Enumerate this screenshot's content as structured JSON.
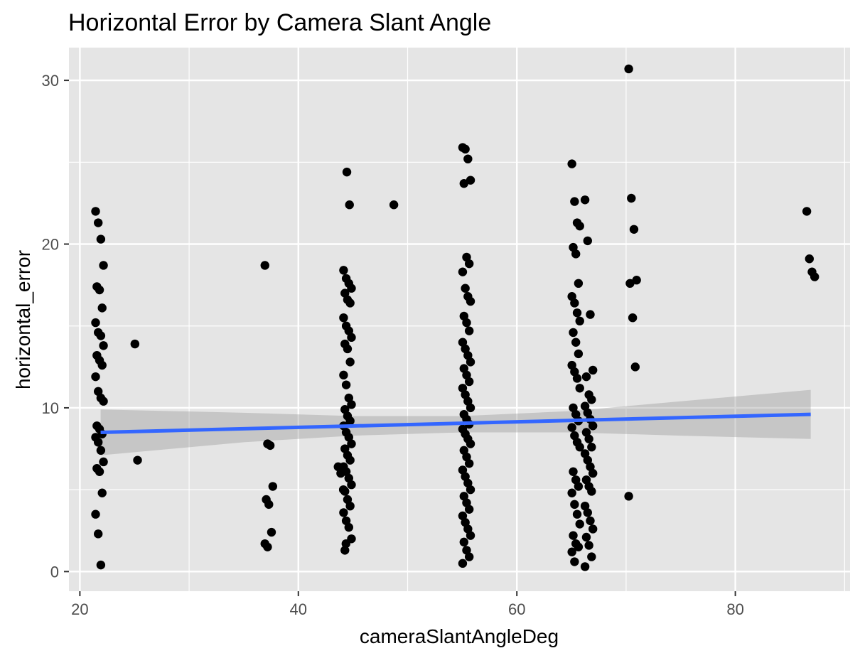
{
  "chart_data": {
    "type": "scatter",
    "title": "Horizontal Error by Camera Slant Angle",
    "xlabel": "cameraSlantAngleDeg",
    "ylabel": "horizontal_error",
    "xlim": [
      19.0,
      90.5
    ],
    "ylim": [
      -1.2,
      32.0
    ],
    "x_ticks": [
      20,
      40,
      60,
      80
    ],
    "y_ticks": [
      0,
      10,
      20,
      30
    ],
    "x_tick_labels": [
      "20",
      "40",
      "60",
      "80"
    ],
    "y_tick_labels": [
      "0",
      "10",
      "20",
      "30"
    ],
    "grid": true,
    "colors": {
      "panel": "#e5e5e5",
      "grid": "#ffffff",
      "points": "#000000",
      "fit_line": "#3366ff",
      "confidence_band": "#999999"
    },
    "fit": {
      "method": "linear",
      "x": [
        21.9,
        86.9
      ],
      "y": [
        8.5,
        9.6
      ],
      "band": [
        {
          "x": 21.9,
          "lower": 7.1,
          "upper": 9.9
        },
        {
          "x": 35.0,
          "lower": 7.9,
          "upper": 9.7
        },
        {
          "x": 45.0,
          "lower": 8.3,
          "upper": 9.5
        },
        {
          "x": 55.0,
          "lower": 8.5,
          "upper": 9.5
        },
        {
          "x": 65.0,
          "lower": 8.5,
          "upper": 9.8
        },
        {
          "x": 75.0,
          "lower": 8.3,
          "upper": 10.4
        },
        {
          "x": 86.9,
          "lower": 8.1,
          "upper": 11.1
        }
      ]
    },
    "groups": [
      {
        "x": 21.8,
        "values": [
          22.0,
          21.3,
          20.3,
          18.7,
          17.4,
          17.2,
          16.1,
          15.2,
          14.6,
          14.4,
          13.8,
          13.2,
          12.9,
          12.6,
          11.9,
          11.0,
          10.6,
          10.4,
          8.9,
          8.7,
          8.4,
          8.2,
          7.9,
          7.4,
          6.7,
          6.3,
          6.1,
          4.8,
          3.5,
          2.3,
          0.4
        ]
      },
      {
        "x": 25.4,
        "values": [
          13.9,
          6.8
        ]
      },
      {
        "x": 37.3,
        "values": [
          18.7,
          7.8,
          7.7,
          5.2,
          4.4,
          4.1,
          2.4,
          1.7,
          1.5
        ]
      },
      {
        "x": 44.5,
        "values": [
          18.4,
          17.9,
          17.6,
          17.3,
          17.0,
          16.6,
          16.4,
          15.5,
          15.0,
          14.7,
          14.3,
          13.9,
          13.6,
          12.8,
          12.0,
          11.4,
          10.6,
          10.2,
          9.9,
          9.5,
          9.2,
          8.9,
          8.5,
          8.2,
          7.8,
          7.5,
          7.1,
          6.8,
          6.4,
          6.1,
          5.7,
          5.3,
          4.9,
          4.4,
          4.0,
          3.6,
          3.1,
          2.7,
          2.0,
          1.3
        ]
      },
      {
        "x": 44.8,
        "values": [
          24.4,
          22.4
        ]
      },
      {
        "x": 44.0,
        "values": [
          6.4,
          6.0,
          5.0,
          1.7
        ]
      },
      {
        "x": 49.1,
        "values": [
          22.4
        ]
      },
      {
        "x": 55.4,
        "values": [
          25.9,
          25.8,
          25.2,
          23.9,
          23.7,
          19.2,
          18.8,
          18.3,
          17.3,
          16.8,
          16.5,
          15.6,
          15.2,
          14.7,
          14.0,
          13.6,
          13.2,
          12.8,
          12.4,
          12.0,
          11.6,
          11.2,
          10.8,
          10.4,
          10.0,
          9.6,
          9.3,
          9.0,
          8.7,
          8.4,
          8.1,
          7.8,
          7.4,
          7.0,
          6.6,
          6.2,
          5.8,
          5.4,
          5.0,
          4.6,
          4.2,
          3.8,
          3.4,
          3.0,
          2.6,
          2.2,
          1.8,
          1.3,
          0.9,
          0.5
        ]
      },
      {
        "x": 65.4,
        "values": [
          24.9,
          22.6,
          21.3,
          21.1,
          19.8,
          19.4,
          17.6,
          16.8,
          16.4,
          15.8,
          15.3,
          14.6,
          14.0,
          13.3,
          12.6,
          12.2,
          11.8,
          11.2,
          10.0,
          9.6,
          9.2,
          8.8,
          8.3,
          7.9,
          7.6,
          6.1,
          5.6,
          5.2,
          4.8,
          4.1,
          3.5,
          2.9,
          2.2,
          1.7,
          1.5,
          1.2,
          0.6
        ]
      },
      {
        "x": 66.6,
        "values": [
          22.7,
          20.2,
          15.7,
          12.3,
          11.9,
          10.8,
          10.5,
          10.1,
          9.7,
          9.3,
          8.9,
          8.5,
          8.1,
          7.6,
          7.2,
          6.8,
          6.4,
          6.0,
          5.6,
          5.2,
          4.9,
          4.0,
          3.6,
          3.1,
          2.6,
          2.1,
          1.6,
          0.9,
          0.3
        ]
      },
      {
        "x": 70.6,
        "values": [
          30.7,
          22.8,
          20.9,
          17.8,
          17.6,
          15.5,
          12.5,
          4.6
        ]
      },
      {
        "x": 86.9,
        "values": [
          22.0,
          19.1,
          18.3,
          18.0
        ]
      }
    ]
  }
}
